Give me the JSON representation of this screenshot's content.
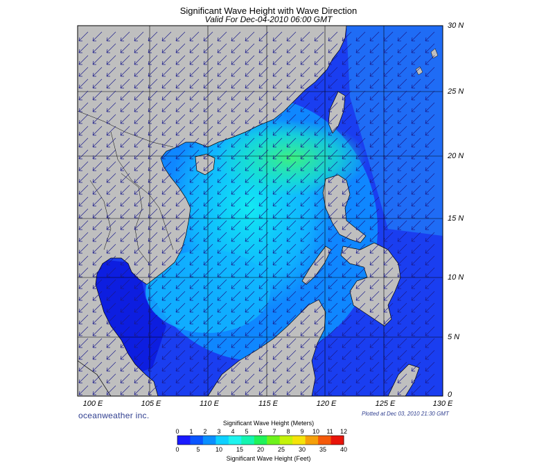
{
  "title": "Significant Wave Height with Wave Direction",
  "subtitle": "Valid For Dec-04-2010 06:00 GMT",
  "brand": "oceanweather inc.",
  "plotted": "Plotted at Dec 03, 2010 21:30 GMT",
  "lat_labels": [
    "30 N",
    "25 N",
    "20 N",
    "15 N",
    "10 N",
    "5 N",
    "0"
  ],
  "lon_labels": [
    "100 E",
    "105 E",
    "110 E",
    "115 E",
    "120 E",
    "125 E",
    "130 E"
  ],
  "colorbar": {
    "meters_title": "Significant Wave Height (Meters)",
    "feet_title": "Significant Wave Height (Feet)",
    "meters_ticks": [
      "0",
      "1",
      "2",
      "3",
      "4",
      "5",
      "6",
      "7",
      "8",
      "9",
      "10",
      "11",
      "12"
    ],
    "feet_ticks": [
      "0",
      "5",
      "10",
      "15",
      "20",
      "25",
      "30",
      "35",
      "40"
    ],
    "colors": [
      "#1a1aff",
      "#0a55ff",
      "#0a8fff",
      "#0fd0ff",
      "#1ef3ee",
      "#14f5b0",
      "#20f25a",
      "#6ef21c",
      "#c4f20a",
      "#f5e30a",
      "#f5a00a",
      "#f55a0a",
      "#e8140a"
    ]
  },
  "colors": {
    "land": "#bfbfbf",
    "ocean_low": "#1a40f0",
    "ocean_mid": "#0fc8ff",
    "ocean_high": "#14f0a0",
    "arrow": "#1a1a8a",
    "text_blue": "#2e3d8f"
  }
}
